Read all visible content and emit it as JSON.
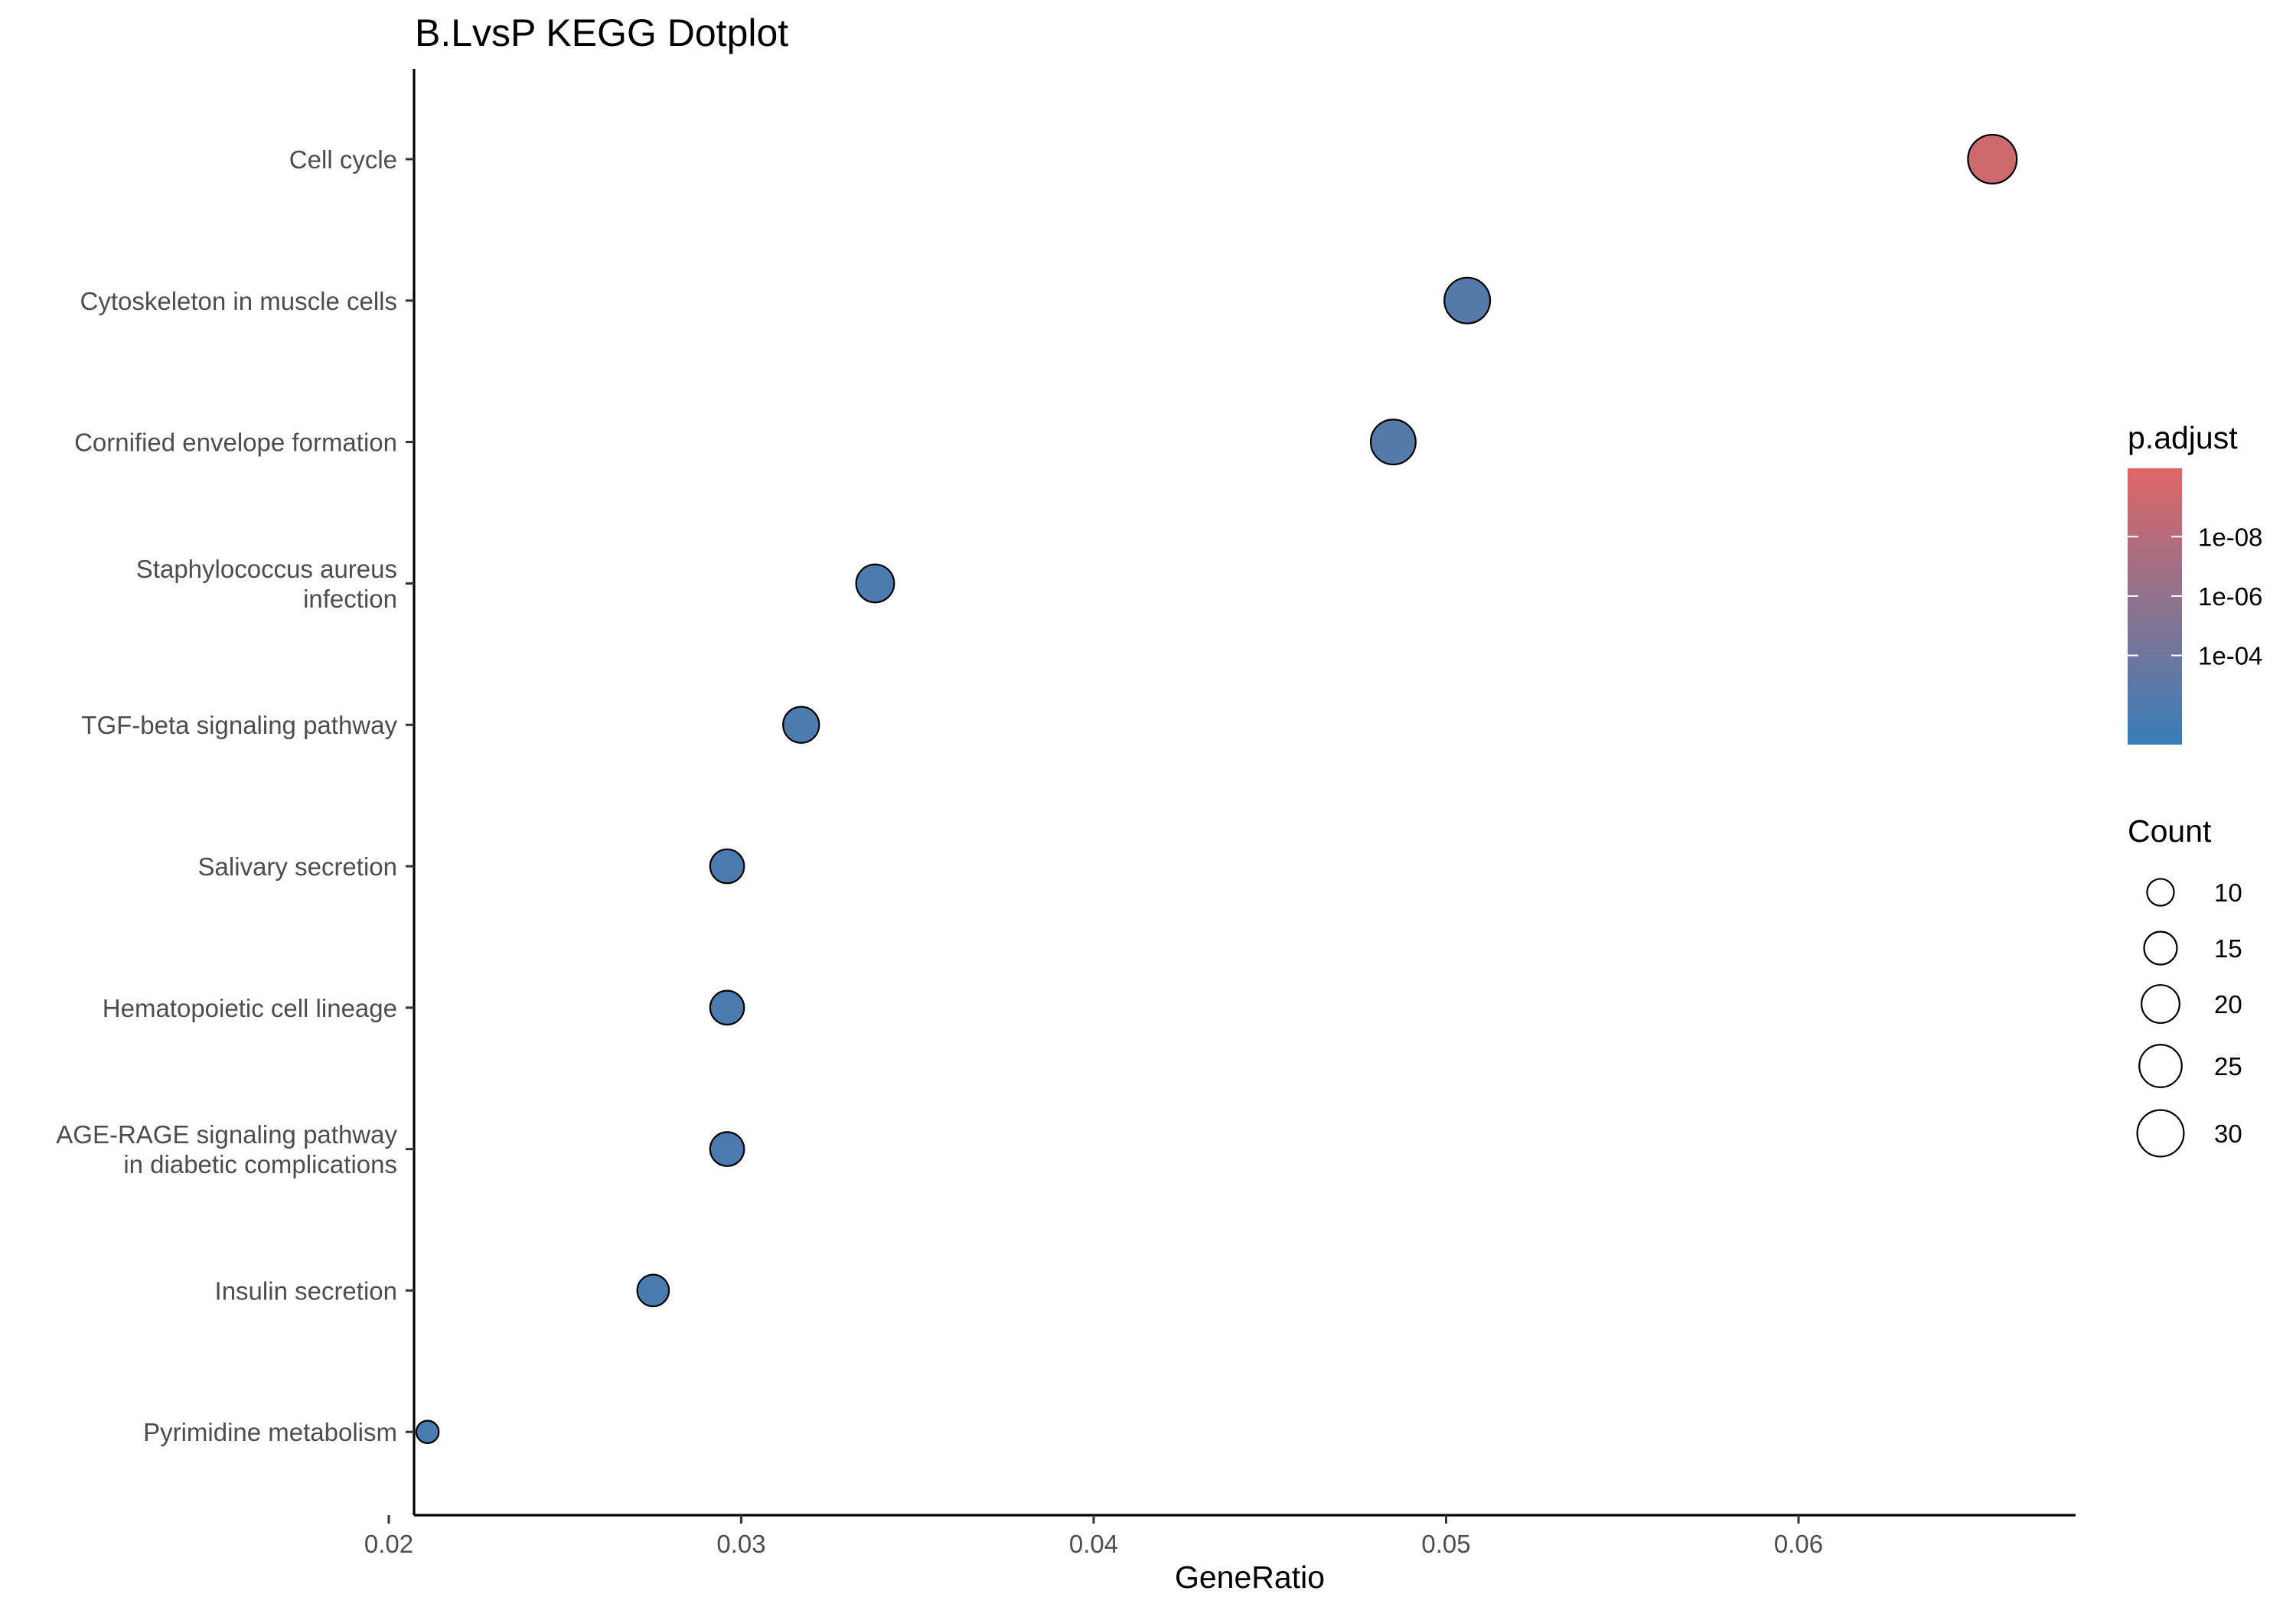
{
  "chart_data": {
    "type": "scatter",
    "title": "B.LvsP KEGG Dotplot",
    "xlabel": "GeneRatio",
    "ylabel": "",
    "xlim": [
      0.019,
      0.0675
    ],
    "xticks": [
      0.02,
      0.03,
      0.04,
      0.05,
      0.06
    ],
    "xtick_labels": [
      "0.02",
      "0.03",
      "0.04",
      "0.05",
      "0.06"
    ],
    "grid": false,
    "categories": [
      [
        "Cell cycle"
      ],
      [
        "Cytoskeleton in muscle cells"
      ],
      [
        "Cornified envelope formation"
      ],
      [
        "Staphylococcus aureus",
        "infection"
      ],
      [
        "TGF-beta signaling pathway"
      ],
      [
        "Salivary secretion"
      ],
      [
        "Hematopoietic cell lineage"
      ],
      [
        "AGE-RAGE signaling pathway",
        "in diabetic complications"
      ],
      [
        "Insulin secretion"
      ],
      [
        "Pyrimidine metabolism"
      ]
    ],
    "points": [
      {
        "gene_ratio": 0.0655,
        "count": 33,
        "p_adjust_log10": -9.3
      },
      {
        "gene_ratio": 0.0506,
        "count": 29,
        "p_adjust_log10": -2.6
      },
      {
        "gene_ratio": 0.0485,
        "count": 28,
        "p_adjust_log10": -2.6
      },
      {
        "gene_ratio": 0.0338,
        "count": 20,
        "p_adjust_log10": -2.2
      },
      {
        "gene_ratio": 0.0317,
        "count": 18,
        "p_adjust_log10": -2.2
      },
      {
        "gene_ratio": 0.0296,
        "count": 16,
        "p_adjust_log10": -2.1
      },
      {
        "gene_ratio": 0.0296,
        "count": 16,
        "p_adjust_log10": -2.1
      },
      {
        "gene_ratio": 0.0296,
        "count": 16,
        "p_adjust_log10": -2.1
      },
      {
        "gene_ratio": 0.0275,
        "count": 14,
        "p_adjust_log10": -2.0
      },
      {
        "gene_ratio": 0.0211,
        "count": 7,
        "p_adjust_log10": -2.0
      }
    ],
    "color_legend": {
      "title": "p.adjust",
      "low_color": "#377EB8",
      "high_color": "#E06666",
      "log10_range": [
        -1.0,
        -10.3
      ],
      "ticks": [
        {
          "label": "1e-08",
          "log10": -8
        },
        {
          "label": "1e-06",
          "log10": -6
        },
        {
          "label": "1e-04",
          "log10": -4
        }
      ]
    },
    "size_legend": {
      "title": "Count",
      "counts": [
        10,
        15,
        20,
        25,
        30
      ],
      "labels": [
        "10",
        "15",
        "20",
        "25",
        "30"
      ]
    }
  }
}
